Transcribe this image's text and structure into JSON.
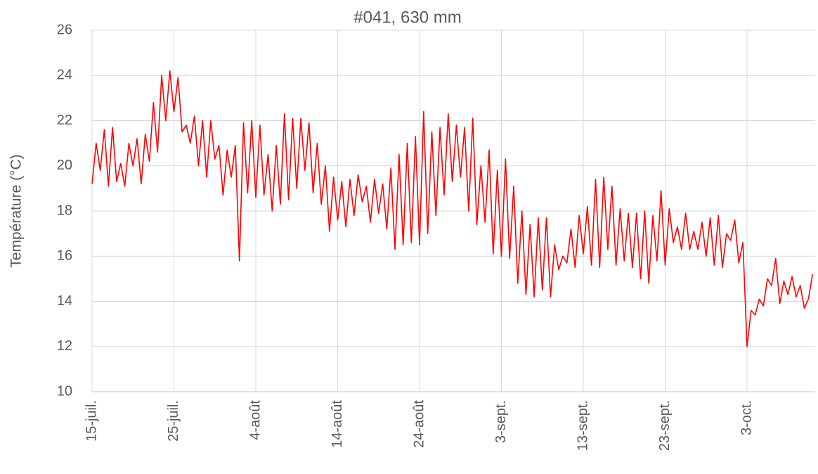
{
  "chart_data": {
    "type": "line",
    "title": "#041, 630 mm",
    "ylabel": "Température (°C)",
    "categories": [
      "15-juil.",
      null,
      null,
      null,
      null,
      null,
      null,
      null,
      null,
      null,
      null,
      null,
      null,
      null,
      null,
      null,
      null,
      null,
      null,
      null,
      "25-juil.",
      null,
      null,
      null,
      null,
      null,
      null,
      null,
      null,
      null,
      null,
      null,
      null,
      null,
      null,
      null,
      null,
      null,
      null,
      null,
      "4-août",
      null,
      null,
      null,
      null,
      null,
      null,
      null,
      null,
      null,
      null,
      null,
      null,
      null,
      null,
      null,
      null,
      null,
      null,
      null,
      "14-août",
      null,
      null,
      null,
      null,
      null,
      null,
      null,
      null,
      null,
      null,
      null,
      null,
      null,
      null,
      null,
      null,
      null,
      null,
      null,
      "24-août",
      null,
      null,
      null,
      null,
      null,
      null,
      null,
      null,
      null,
      null,
      null,
      null,
      null,
      null,
      null,
      null,
      null,
      null,
      null,
      "3-sept.",
      null,
      null,
      null,
      null,
      null,
      null,
      null,
      null,
      null,
      null,
      null,
      null,
      null,
      null,
      null,
      null,
      null,
      null,
      null,
      "13-sept.",
      null,
      null,
      null,
      null,
      null,
      null,
      null,
      null,
      null,
      null,
      null,
      null,
      null,
      null,
      null,
      null,
      null,
      null,
      null,
      "23-sept.",
      null,
      null,
      null,
      null,
      null,
      null,
      null,
      null,
      null,
      null,
      null,
      null,
      null,
      null,
      null,
      null,
      null,
      null,
      null,
      "3-oct.",
      null,
      null,
      null,
      null,
      null,
      null,
      null,
      null,
      null,
      null,
      null,
      null,
      null,
      null,
      null,
      null
    ],
    "series": [
      {
        "name": "#041, 630 mm",
        "color": "#ff0000",
        "values": [
          19.2,
          21.0,
          19.8,
          21.6,
          19.1,
          21.7,
          19.3,
          20.1,
          19.1,
          21.0,
          20.0,
          21.2,
          19.2,
          21.4,
          20.2,
          22.8,
          20.6,
          24.0,
          22.0,
          24.2,
          22.4,
          23.9,
          21.5,
          21.8,
          21.0,
          22.2,
          20.0,
          22.0,
          19.5,
          22.0,
          20.3,
          20.9,
          18.7,
          20.7,
          19.5,
          20.9,
          15.8,
          21.9,
          18.8,
          22.0,
          18.6,
          21.8,
          18.7,
          20.5,
          18.0,
          20.9,
          18.3,
          22.3,
          18.5,
          22.1,
          19.0,
          22.1,
          19.8,
          21.9,
          18.8,
          21.0,
          18.3,
          20.0,
          17.1,
          19.5,
          17.6,
          19.3,
          17.3,
          19.4,
          17.8,
          19.6,
          18.4,
          19.1,
          17.5,
          19.4,
          17.9,
          19.2,
          17.2,
          19.9,
          16.3,
          20.5,
          16.5,
          21.0,
          16.6,
          21.3,
          16.5,
          22.4,
          17.0,
          21.5,
          17.8,
          21.7,
          18.7,
          22.3,
          19.3,
          21.8,
          19.5,
          21.7,
          18.0,
          22.1,
          17.4,
          20.0,
          17.5,
          20.7,
          16.1,
          19.8,
          16.0,
          20.3,
          15.9,
          19.1,
          14.8,
          18.0,
          14.3,
          17.4,
          14.2,
          17.7,
          14.5,
          17.7,
          14.2,
          16.5,
          15.4,
          16.0,
          15.7,
          17.2,
          15.5,
          17.8,
          16.1,
          18.2,
          15.6,
          19.4,
          15.5,
          19.5,
          16.3,
          19.1,
          15.6,
          18.1,
          15.8,
          17.9,
          15.5,
          17.9,
          15.0,
          18.0,
          14.8,
          17.8,
          15.8,
          18.9,
          15.6,
          18.1,
          16.6,
          17.3,
          16.3,
          17.9,
          16.3,
          17.1,
          16.3,
          17.5,
          16.0,
          17.7,
          15.6,
          17.8,
          15.5,
          17.0,
          16.7,
          17.6,
          15.7,
          16.6,
          12.0,
          13.6,
          13.4,
          14.1,
          13.8,
          15.0,
          14.7,
          15.9,
          13.9,
          14.9,
          14.3,
          15.1,
          14.2,
          14.7,
          13.7,
          14.1,
          15.2
        ]
      }
    ],
    "ylim": [
      10,
      26
    ],
    "yticks": [
      10,
      12,
      14,
      16,
      18,
      20,
      22,
      24,
      26
    ],
    "grid": true
  }
}
